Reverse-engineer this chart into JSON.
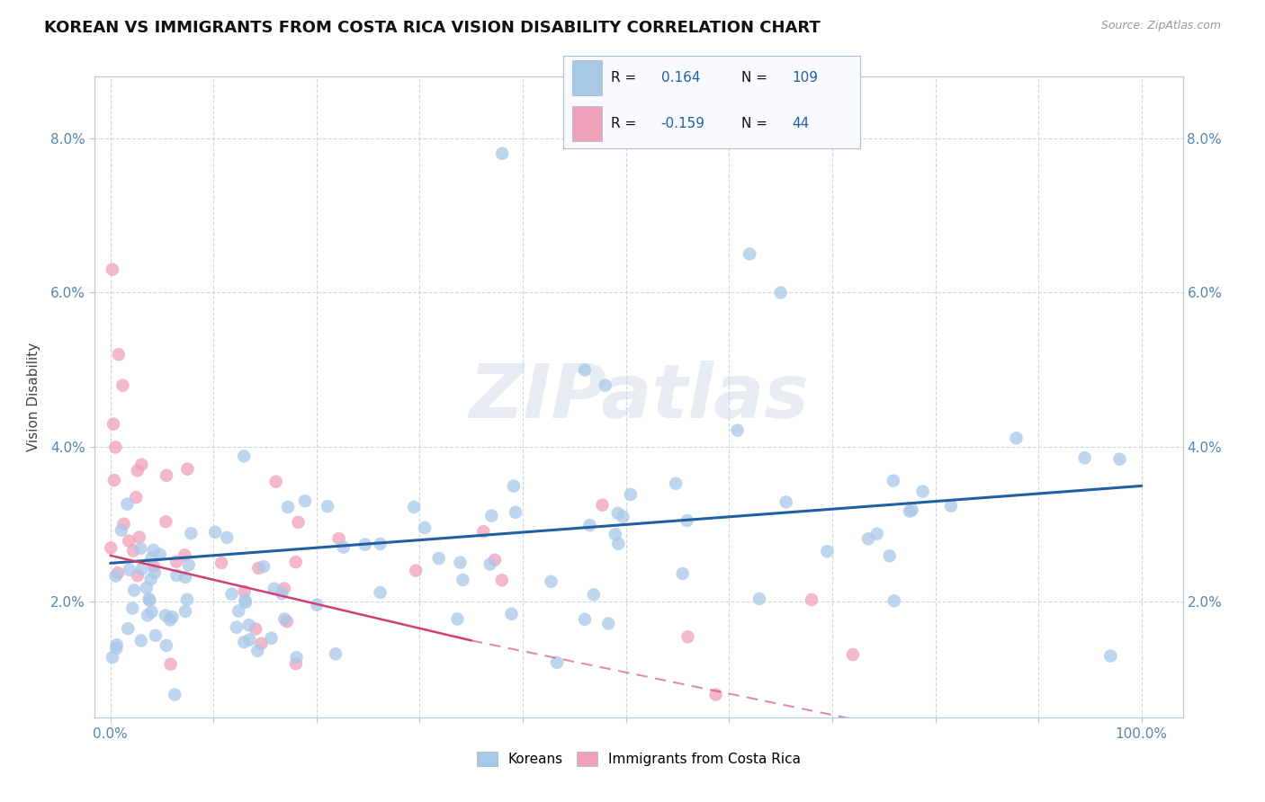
{
  "title": "KOREAN VS IMMIGRANTS FROM COSTA RICA VISION DISABILITY CORRELATION CHART",
  "source": "Source: ZipAtlas.com",
  "ylabel": "Vision Disability",
  "yticks": [
    "2.0%",
    "4.0%",
    "6.0%",
    "8.0%"
  ],
  "ytick_vals": [
    0.02,
    0.04,
    0.06,
    0.08
  ],
  "xlim": [
    -0.015,
    1.04
  ],
  "ylim": [
    0.005,
    0.088
  ],
  "korean_R": 0.164,
  "korean_N": 109,
  "costa_rica_R": -0.159,
  "costa_rica_N": 44,
  "korean_color": "#a8c8e8",
  "costa_rica_color": "#f0a0b8",
  "korean_line_color": "#2060a0",
  "costa_rica_line_color": "#d04070",
  "watermark": "ZIPatlas",
  "background_color": "#ffffff",
  "grid_color": "#c8d4e0",
  "tick_color": "#5588aa",
  "legend_r_label_color": "#000000",
  "legend_value_color": "#2060a0"
}
